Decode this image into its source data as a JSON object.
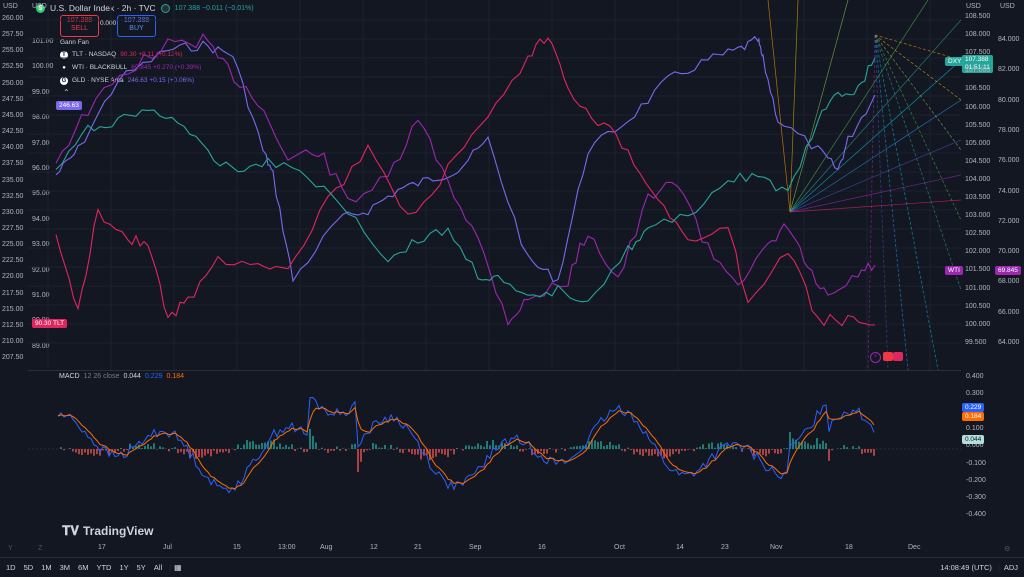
{
  "header": {
    "symbol_title": "U.S. Dollar Index · 2h · TVC",
    "price_line": "107.388 −0.011 (−0.01%)",
    "sell_price": "107.388",
    "sell_label": "SELL",
    "spread": "0.000",
    "buy_price": "107.388",
    "buy_label": "BUY"
  },
  "legend": {
    "gann": "Gann Fan",
    "rows": [
      {
        "label": "TLT · NASDAQ",
        "value": "90.30 +0.11 (+0.12%)",
        "color": "#e0265f"
      },
      {
        "label": "WTI · BLACKBULL",
        "value": "69.845 +0.270 (+0.39%)",
        "color": "#9c27b0"
      },
      {
        "label": "GLD · NYSE Arca",
        "value": "246.63 +0.15 (+0.06%)",
        "color": "#7b68ee"
      }
    ]
  },
  "left_axis_top": {
    "usd": "USD",
    "values": [
      "260.00",
      "257.50",
      "255.00",
      "252.50",
      "250.00",
      "247.50",
      "245.00",
      "242.50",
      "240.00",
      "237.50",
      "235.00",
      "232.50",
      "230.00",
      "227.50",
      "225.00",
      "222.50",
      "220.00",
      "217.50",
      "215.00",
      "212.50",
      "210.00",
      "207.50"
    ]
  },
  "inner_axis": {
    "usd": "USD",
    "values": [
      "101.00",
      "100.00",
      "99.00",
      "98.00",
      "97.00",
      "96.00",
      "95.00",
      "94.00",
      "93.00",
      "92.00",
      "91.00",
      "90.00",
      "89.00"
    ]
  },
  "right_axis": {
    "usd": "USD",
    "values": [
      "108.500",
      "108.000",
      "107.500",
      "107.000",
      "106.500",
      "106.000",
      "105.500",
      "105.000",
      "104.500",
      "104.000",
      "103.500",
      "103.000",
      "102.500",
      "102.000",
      "101.500",
      "101.000",
      "100.500",
      "100.000",
      "99.500"
    ]
  },
  "right_axis2": {
    "usd": "USD",
    "values": [
      "84.000",
      "82.000",
      "80.000",
      "78.000",
      "76.000",
      "74.000",
      "72.000",
      "70.000",
      "68.000",
      "66.000",
      "64.000"
    ]
  },
  "tags": {
    "gld": "246.63",
    "tlt": "90.30",
    "tlt_name": "TLT",
    "dxy_name": "DXY",
    "dxy_price": "107.388",
    "dxy_countdown": "01:51:11",
    "wti_name": "WTI",
    "wti_price": "69.845"
  },
  "macd": {
    "title": "MACD",
    "params": "12 26 close",
    "v1": "0.044",
    "v2": "0.229",
    "v3": "0.184",
    "axis": [
      "0.400",
      "0.300",
      "0.200",
      "0.100",
      "0.000",
      "-0.100",
      "-0.200",
      "-0.300",
      "-0.400"
    ],
    "tag_blue": "0.229",
    "tag_orange": "0.184",
    "tag_hist": "0.044"
  },
  "time_axis": [
    "17",
    "Jul",
    "15",
    "13:00",
    "Aug",
    "12",
    "21",
    "Sep",
    "16",
    "Oct",
    "14",
    "23",
    "Nov",
    "18",
    "Dec"
  ],
  "bottom": {
    "ranges": [
      "1D",
      "5D",
      "1M",
      "3M",
      "6M",
      "YTD",
      "1Y",
      "5Y",
      "All"
    ],
    "clock": "14:08:49 (UTC)",
    "adj": "ADJ"
  },
  "brand": "TradingView",
  "colors": {
    "bg": "#131722",
    "dxy": "#26a69a",
    "wti": "#9c27b0",
    "tlt": "#e0265f",
    "gld": "#7b68ee",
    "macd": "#2962ff",
    "signal": "#ff6d00"
  }
}
